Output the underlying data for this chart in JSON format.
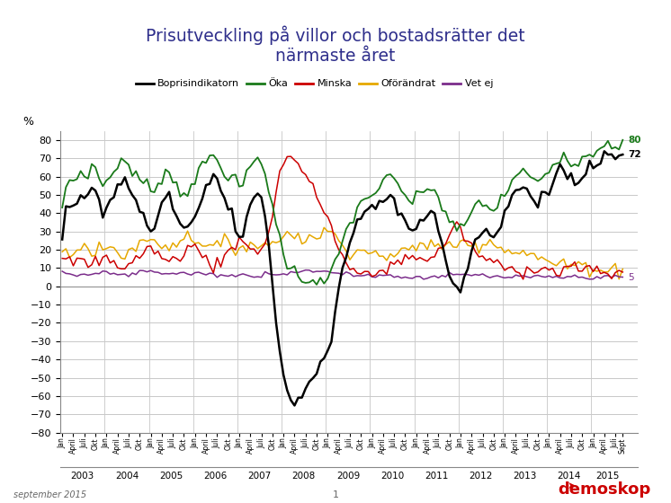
{
  "title": "Prisutveckling på villor och bostadsrätter det\nnärmaste året",
  "title_color": "#2e2e8b",
  "ylabel": "%",
  "ylim": [
    -80,
    85
  ],
  "yticks": [
    -80,
    -70,
    -60,
    -50,
    -40,
    -30,
    -20,
    -10,
    0,
    10,
    20,
    30,
    40,
    50,
    60,
    70,
    80
  ],
  "footer_left": "september 2015",
  "footer_center": "1",
  "series_colors": {
    "Boprisindikatorn": "#000000",
    "Öka": "#1a7a1a",
    "Minska": "#cc0000",
    "Oförändrat": "#e6a800",
    "Vet ej": "#7b2d8b"
  },
  "background_color": "#ffffff",
  "grid_color": "#c8c8c8",
  "n_months": 153
}
